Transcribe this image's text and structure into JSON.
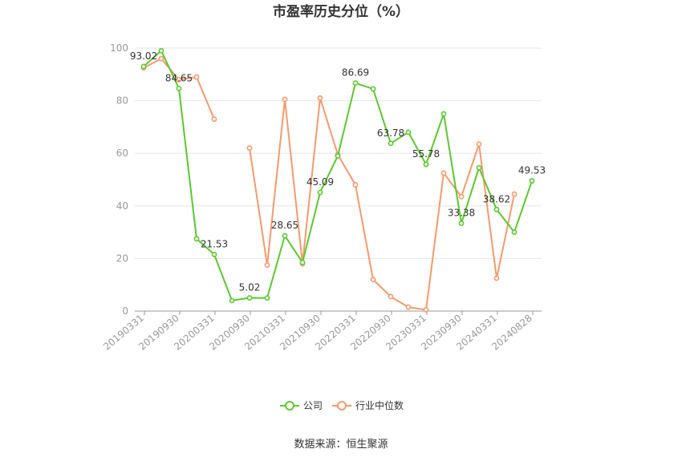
{
  "chart_data": {
    "type": "line",
    "title": "市盈率历史分位（%）",
    "source": "数据来源：恒生聚源",
    "ylim": [
      0,
      100
    ],
    "yticks": [
      0,
      20,
      40,
      60,
      80,
      100
    ],
    "grid": true,
    "legend_position": "bottom",
    "x_tick_labels": [
      "20190331",
      "20190930",
      "20200331",
      "20200930",
      "20210331",
      "20210930",
      "20220331",
      "20220930",
      "20230331",
      "20230930",
      "20240331",
      "20240828"
    ],
    "series": [
      {
        "name": "公司",
        "color": "#5dc731",
        "values": [
          93.02,
          99.0,
          84.65,
          27.5,
          21.53,
          4.0,
          5.02,
          5.0,
          28.65,
          18.5,
          45.09,
          59.0,
          86.69,
          84.5,
          63.78,
          68.0,
          55.78,
          75.0,
          33.38,
          54.5,
          38.62,
          30.0,
          49.53
        ],
        "labels": [
          "93.02",
          "",
          "84.65",
          "",
          "21.53",
          "",
          "5.02",
          "",
          "28.65",
          "",
          "45.09",
          "",
          "86.69",
          "",
          "63.78",
          "",
          "55.78",
          "",
          "33.38",
          "",
          "38.62",
          "",
          "49.53"
        ]
      },
      {
        "name": "行业中位数",
        "color": "#f59a6e",
        "values": [
          92.5,
          96.0,
          88.0,
          89.0,
          73.0,
          null,
          62.0,
          17.5,
          80.5,
          18.0,
          81.0,
          59.5,
          48.0,
          12.0,
          5.5,
          1.5,
          0.5,
          52.5,
          43.5,
          63.5,
          12.5,
          44.5,
          null
        ]
      }
    ]
  }
}
